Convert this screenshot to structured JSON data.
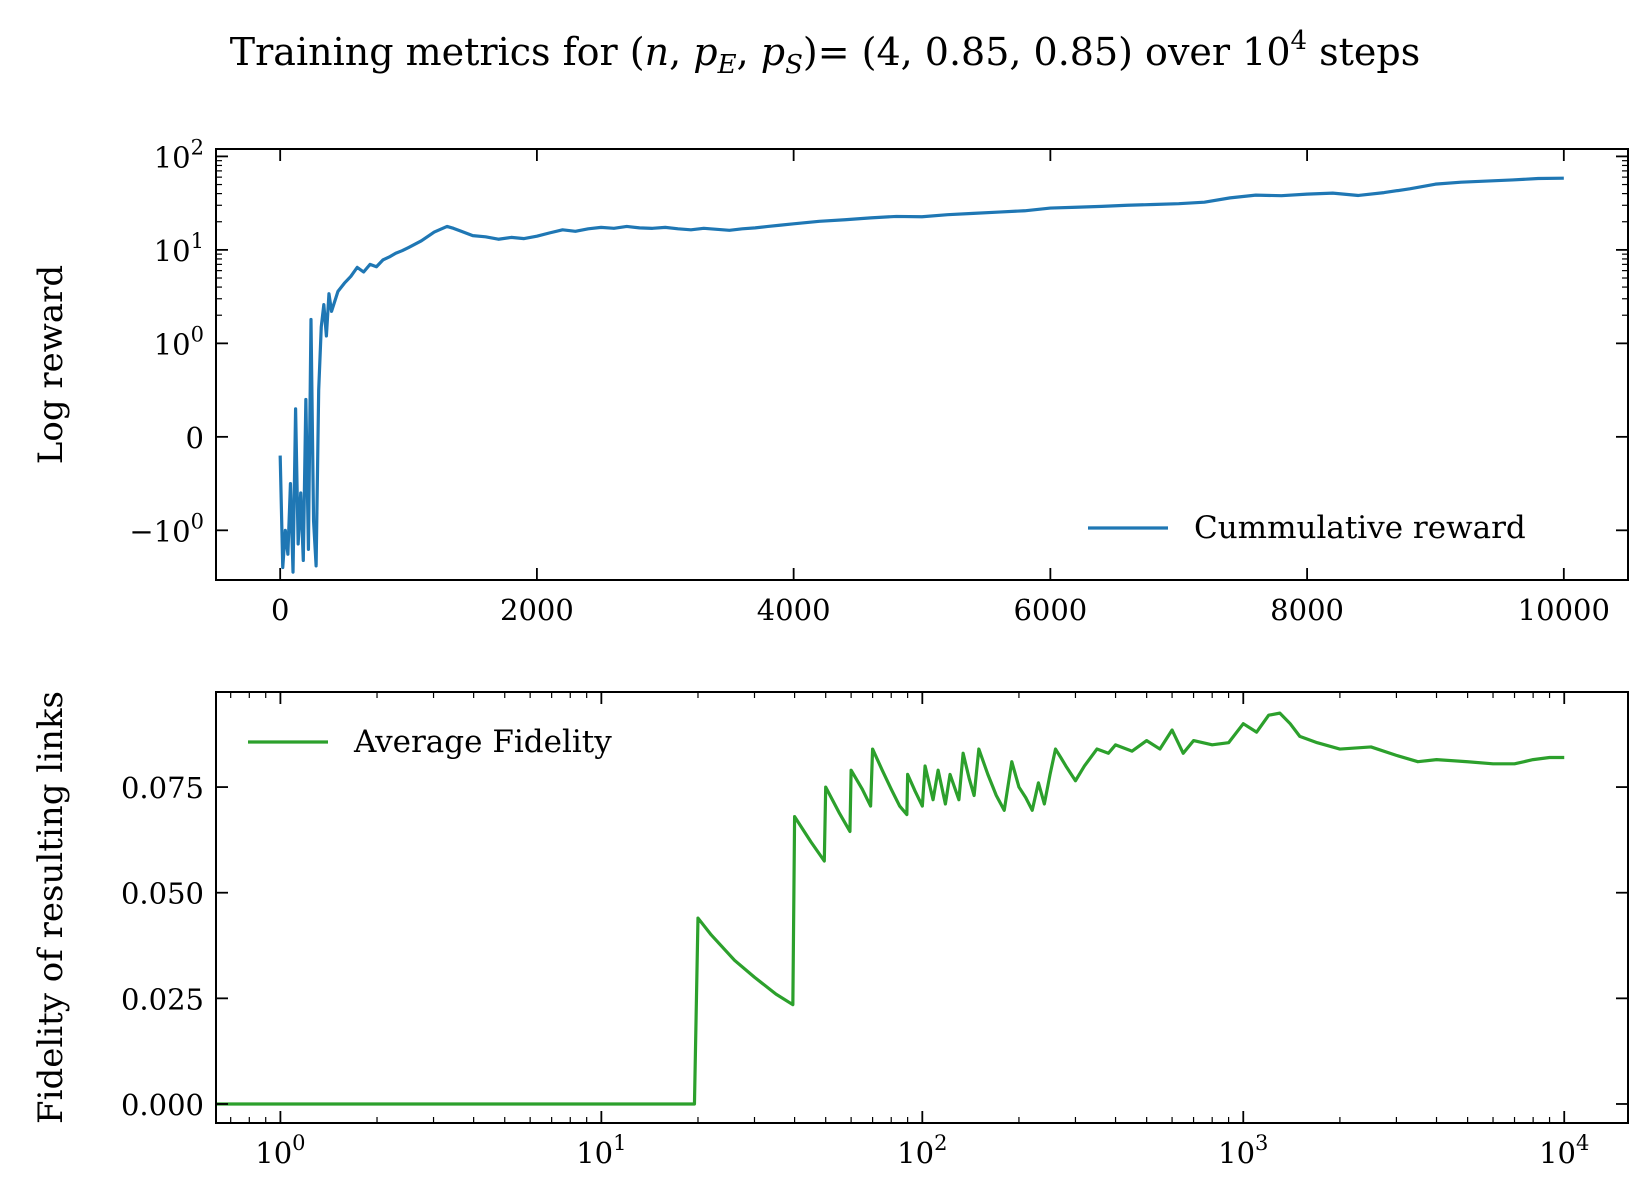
{
  "figure": {
    "title_parts": {
      "pre": "Training metrics for (",
      "n": "n",
      "comma1": ", ",
      "pE_base": "p",
      "pE_sub": "E",
      "comma2": ", ",
      "pS_base": "p",
      "pS_sub": "S",
      "post": ")= (4, 0.85, 0.85) over 10",
      "sup": "4",
      "tail": " steps"
    }
  },
  "chart_data": [
    {
      "type": "line",
      "yscale": "symlog",
      "ylabel": "Log reward",
      "xlim": [
        -500,
        10500
      ],
      "ylim": [
        -3.4,
        120
      ],
      "xticks": [
        {
          "value": 0,
          "label": "0"
        },
        {
          "value": 2000,
          "label": "2000"
        },
        {
          "value": 4000,
          "label": "4000"
        },
        {
          "value": 6000,
          "label": "6000"
        },
        {
          "value": 8000,
          "label": "8000"
        },
        {
          "value": 10000,
          "label": "10000"
        }
      ],
      "yticks": [
        {
          "value": -1,
          "label_base": "−10",
          "label_exp": "0"
        },
        {
          "value": 0,
          "label_base": "0",
          "label_exp": ""
        },
        {
          "value": 1,
          "label_base": "10",
          "label_exp": "0"
        },
        {
          "value": 10,
          "label_base": "10",
          "label_exp": "1"
        },
        {
          "value": 100,
          "label_base": "10",
          "label_exp": "2"
        }
      ],
      "legend": {
        "position": "lower-right"
      },
      "series": [
        {
          "name": "Cummulative reward",
          "color": "#1f77b4",
          "x": [
            0,
            20,
            40,
            60,
            80,
            100,
            120,
            140,
            160,
            180,
            200,
            220,
            240,
            260,
            280,
            300,
            320,
            340,
            360,
            380,
            400,
            450,
            500,
            550,
            600,
            650,
            700,
            750,
            800,
            850,
            900,
            950,
            1000,
            1100,
            1200,
            1300,
            1350,
            1400,
            1500,
            1600,
            1700,
            1800,
            1900,
            2000,
            2100,
            2200,
            2300,
            2400,
            2500,
            2600,
            2700,
            2800,
            2900,
            3000,
            3100,
            3200,
            3300,
            3400,
            3500,
            3600,
            3700,
            3800,
            3900,
            4000,
            4200,
            4400,
            4600,
            4800,
            5000,
            5200,
            5400,
            5600,
            5800,
            6000,
            6200,
            6400,
            6600,
            6800,
            7000,
            7200,
            7400,
            7600,
            7800,
            8000,
            8200,
            8400,
            8600,
            8800,
            9000,
            9200,
            9400,
            9600,
            9800,
            10000
          ],
          "values": [
            -0.2,
            -2.5,
            -1.0,
            -1.8,
            -0.5,
            -2.8,
            0.3,
            -1.4,
            -0.6,
            -2.1,
            0.4,
            -1.6,
            1.8,
            -0.9,
            -2.4,
            0.5,
            1.5,
            2.6,
            1.2,
            3.4,
            2.2,
            3.6,
            4.4,
            5.2,
            6.5,
            5.8,
            7.0,
            6.6,
            7.8,
            8.4,
            9.2,
            9.8,
            10.6,
            12.5,
            15.5,
            17.8,
            17.0,
            16.0,
            14.2,
            13.8,
            13.0,
            13.6,
            13.2,
            14.0,
            15.2,
            16.4,
            15.8,
            16.8,
            17.4,
            17.0,
            17.8,
            17.2,
            17.0,
            17.4,
            16.8,
            16.4,
            17.0,
            16.6,
            16.2,
            16.8,
            17.2,
            17.8,
            18.4,
            19.0,
            20.2,
            21.0,
            22.0,
            22.8,
            22.6,
            23.8,
            24.6,
            25.4,
            26.2,
            28.0,
            28.6,
            29.2,
            30.0,
            30.6,
            31.2,
            32.4,
            36.0,
            38.5,
            38.0,
            39.5,
            40.5,
            38.2,
            41.0,
            45.0,
            50.5,
            53.0,
            54.5,
            56.0,
            58.0,
            58.5
          ]
        }
      ]
    },
    {
      "type": "line",
      "xscale": "log",
      "ylabel": "Fidelity of resulting links",
      "xlim": [
        0.63,
        15800
      ],
      "ylim": [
        -0.0045,
        0.0975
      ],
      "xticks": [
        {
          "value": 1,
          "label_base": "10",
          "label_exp": "0"
        },
        {
          "value": 10,
          "label_base": "10",
          "label_exp": "1"
        },
        {
          "value": 100,
          "label_base": "10",
          "label_exp": "2"
        },
        {
          "value": 1000,
          "label_base": "10",
          "label_exp": "3"
        },
        {
          "value": 10000,
          "label_base": "10",
          "label_exp": "4"
        }
      ],
      "yticks": [
        {
          "value": 0.0,
          "label": "0.000"
        },
        {
          "value": 0.025,
          "label": "0.025"
        },
        {
          "value": 0.05,
          "label": "0.050"
        },
        {
          "value": 0.075,
          "label": "0.075"
        }
      ],
      "legend": {
        "position": "upper-left"
      },
      "series": [
        {
          "name": "Average Fidelity",
          "color": "#2ca02c",
          "x": [
            0.63,
            1,
            5,
            10,
            15,
            19.5,
            20,
            22,
            26,
            30,
            35,
            39.5,
            40,
            45,
            49.5,
            50,
            55,
            59.5,
            60,
            65,
            69,
            70,
            75,
            80,
            85,
            89.5,
            90,
            95,
            100,
            102,
            108,
            112,
            118,
            122,
            130,
            134,
            140,
            145,
            150,
            160,
            170,
            180,
            190,
            200,
            210,
            220,
            230,
            240,
            250,
            260,
            270,
            280,
            300,
            320,
            350,
            380,
            400,
            450,
            500,
            550,
            600,
            650,
            700,
            800,
            900,
            1000,
            1100,
            1200,
            1300,
            1400,
            1500,
            1700,
            2000,
            2500,
            3000,
            3500,
            4000,
            5000,
            6000,
            7000,
            8000,
            9000,
            10000
          ],
          "values": [
            0,
            0,
            0,
            0,
            0,
            0,
            0.044,
            0.04,
            0.034,
            0.03,
            0.026,
            0.0235,
            0.068,
            0.062,
            0.0575,
            0.075,
            0.069,
            0.0645,
            0.079,
            0.0745,
            0.0705,
            0.084,
            0.079,
            0.0745,
            0.0705,
            0.0685,
            0.078,
            0.074,
            0.0705,
            0.08,
            0.072,
            0.079,
            0.071,
            0.078,
            0.072,
            0.083,
            0.077,
            0.073,
            0.084,
            0.078,
            0.073,
            0.0695,
            0.081,
            0.075,
            0.0725,
            0.0695,
            0.076,
            0.071,
            0.078,
            0.084,
            0.082,
            0.08,
            0.0765,
            0.08,
            0.084,
            0.083,
            0.085,
            0.0835,
            0.086,
            0.084,
            0.0885,
            0.083,
            0.086,
            0.085,
            0.0855,
            0.09,
            0.088,
            0.092,
            0.0925,
            0.09,
            0.087,
            0.0855,
            0.084,
            0.0845,
            0.0825,
            0.081,
            0.0815,
            0.081,
            0.0805,
            0.0805,
            0.0815,
            0.082,
            0.082
          ]
        }
      ]
    }
  ]
}
